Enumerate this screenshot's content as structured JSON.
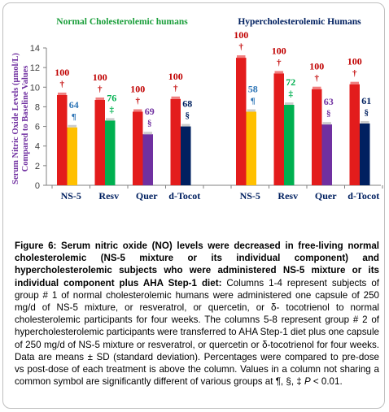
{
  "chart_data": {
    "type": "bar",
    "ylabel": "Serum Nitric Oxide Levels (µmol/L) Compared to Baseline Values",
    "ylim": [
      0,
      14
    ],
    "yticks": [
      0,
      2,
      4,
      6,
      8,
      10,
      12,
      14
    ],
    "grid": false,
    "groups": [
      {
        "title": "Normal Cholesterolemic humans",
        "title_color": "#1a9e3a",
        "categories": [
          "NS-5",
          "Resv",
          "Quer",
          "d-Tocot"
        ],
        "bars": [
          {
            "category": "NS-5",
            "pre": 9.2,
            "post": 5.9,
            "post_color": "#ffc000",
            "pre_pct": "100",
            "pre_sym": "†",
            "post_pct": "64",
            "post_sym": "¶",
            "post_label_color": "#2e75b6"
          },
          {
            "category": "Resv",
            "pre": 8.7,
            "post": 6.6,
            "post_color": "#00b050",
            "pre_pct": "100",
            "pre_sym": "†",
            "post_pct": "76",
            "post_sym": "‡",
            "post_label_color": "#00b050"
          },
          {
            "category": "Quer",
            "pre": 7.5,
            "post": 5.2,
            "post_color": "#7030a0",
            "pre_pct": "100",
            "pre_sym": "†",
            "post_pct": "69",
            "post_sym": "§",
            "post_label_color": "#7030a0"
          },
          {
            "category": "d-Tocot",
            "pre": 8.8,
            "post": 6.0,
            "post_color": "#002060",
            "pre_pct": "100",
            "pre_sym": "†",
            "post_pct": "68",
            "post_sym": "§",
            "post_label_color": "#002060"
          }
        ]
      },
      {
        "title": "Hypercholesterolemic Humans",
        "title_color": "#002060",
        "categories": [
          "NS-5",
          "Resv",
          "Quer",
          "d-Tocot"
        ],
        "bars": [
          {
            "category": "NS-5",
            "pre": 13.0,
            "post": 7.5,
            "post_color": "#ffc000",
            "pre_pct": "100",
            "pre_sym": "†",
            "post_pct": "58",
            "post_sym": "¶",
            "post_label_color": "#2e75b6"
          },
          {
            "category": "Resv",
            "pre": 11.4,
            "post": 8.2,
            "post_color": "#00b050",
            "pre_pct": "100",
            "pre_sym": "†",
            "post_pct": "72",
            "post_sym": "‡",
            "post_label_color": "#00b050"
          },
          {
            "category": "Quer",
            "pre": 9.8,
            "post": 6.2,
            "post_color": "#7030a0",
            "pre_pct": "100",
            "pre_sym": "†",
            "post_pct": "63",
            "post_sym": "§",
            "post_label_color": "#7030a0"
          },
          {
            "category": "d-Tocot",
            "pre": 10.3,
            "post": 6.3,
            "post_color": "#002060",
            "pre_pct": "100",
            "pre_sym": "†",
            "post_pct": "61",
            "post_sym": "§",
            "post_label_color": "#002060"
          }
        ]
      }
    ],
    "pre_color": "#e31c1c",
    "pre_label_color": "#c00000"
  },
  "caption": {
    "lead": "Figure 6: Serum nitric oxide (NO) levels were decreased in free-living normal cholesterolemic (NS-5 mixture or its individual component) and hypercholesterolemic subjects who were administered NS-5 mixture or its individual component plus AHA Step-1 diet:",
    "body_1": " Columns 1-4 represent subjects of group # 1 of normal cholesterolemic humans were administered one capsule of 250 mg/d of NS-5 mixture, or resveratrol, or quercetin, or δ- tocotrienol to normal cholesterolemic participants for four weeks. The columns 5-8 represent group # 2 of hypercholesterolemic participants were transferred to AHA Step-1 diet plus one capsule of 250 mg/d of NS-5 mixture or resveratrol, or quercetin or δ-tocotrienol for four weeks. Data are means ± SD (standard deviation). Percentages were compared to pre-dose vs post-dose of each treatment is above the column. Values in a column not sharing a common symbol are significantly different of various groups at ¶, §, ‡ ",
    "p_letter": "P",
    "body_2": " < 0.01."
  }
}
